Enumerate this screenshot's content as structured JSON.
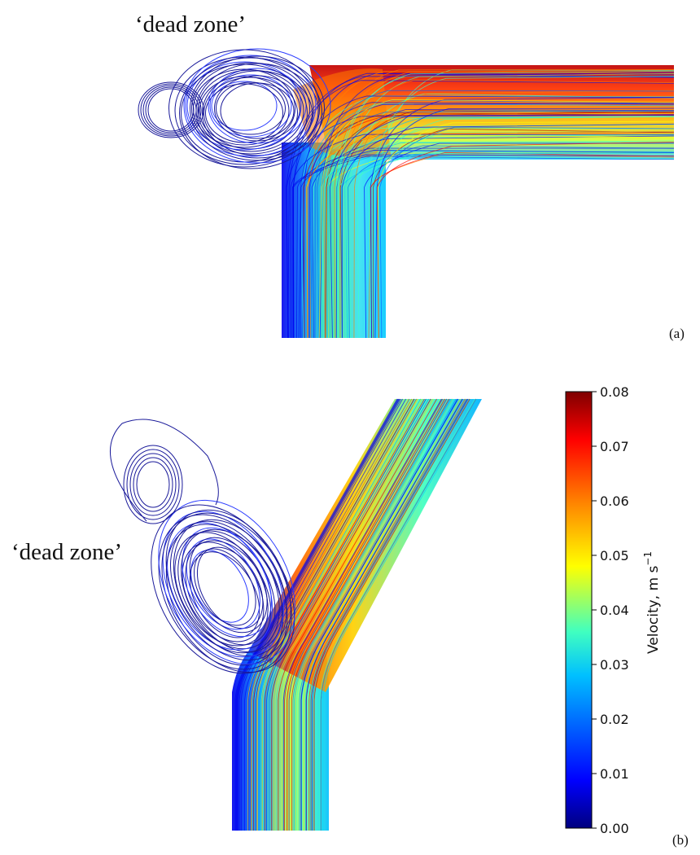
{
  "panel_a": {
    "annotation": "‘dead zone’",
    "label": "(a)"
  },
  "panel_b": {
    "annotation": "‘dead zone’",
    "label": "(b)"
  },
  "colorbar": {
    "label": "Velocity, m s",
    "label_exponent": "−1",
    "ticks": [
      "0.00",
      "0.01",
      "0.02",
      "0.03",
      "0.04",
      "0.05",
      "0.06",
      "0.07",
      "0.08"
    ],
    "min": 0.0,
    "max": 0.08,
    "colormap": "jet",
    "stops": [
      "#00007f",
      "#0000ff",
      "#0080ff",
      "#00ffff",
      "#80ff80",
      "#ffff00",
      "#ff8000",
      "#ff0000",
      "#7f0000"
    ]
  }
}
